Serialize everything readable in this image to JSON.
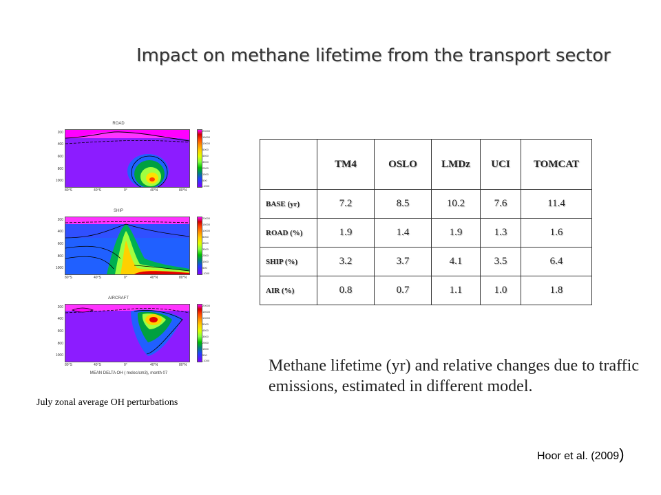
{
  "slide": {
    "title": "Impact on methane lifetime from the transport sector",
    "figure_caption": "July zonal average OH perturbations",
    "description": "Methane lifetime  (yr) and relative changes due to traffic emissions, estimated in different  model.",
    "citation_text": "Hoor et al. (2009",
    "citation_paren": ")"
  },
  "panels": [
    {
      "title": "ROAD"
    },
    {
      "title": "SHIP"
    },
    {
      "title": "AIRCRAFT"
    }
  ],
  "panel_axes": {
    "yticks": [
      "200",
      "400",
      "600",
      "800",
      "1000"
    ],
    "xticks": [
      "80°S",
      "40°S",
      "0°",
      "40°N",
      "80°N"
    ],
    "colorbar_ticks": [
      "20000",
      "15000",
      "10000",
      "5000",
      "4500",
      "3500",
      "2500",
      "1500",
      "500",
      "-1000"
    ],
    "bottom_caption": "MEAN DELTA OH  ( molec/cm3),  month 07"
  },
  "table": {
    "columns": [
      "",
      "TM4",
      "OSLO",
      "LMDz",
      "UCI",
      "TOMCAT"
    ],
    "rows": [
      {
        "label": "BASE (yr)",
        "values": [
          "7.2",
          "8.5",
          "10.2",
          "7.6",
          "11.4"
        ]
      },
      {
        "label": "ROAD (%)",
        "values": [
          "1.9",
          "1.4",
          "1.9",
          "1.3",
          "1.6"
        ]
      },
      {
        "label": "SHIP (%)",
        "values": [
          "3.2",
          "3.7",
          "4.1",
          "3.5",
          "6.4"
        ]
      },
      {
        "label": "AIR (%)",
        "values": [
          "0.8",
          "0.7",
          "1.1",
          "1.0",
          "1.8"
        ]
      }
    ]
  }
}
